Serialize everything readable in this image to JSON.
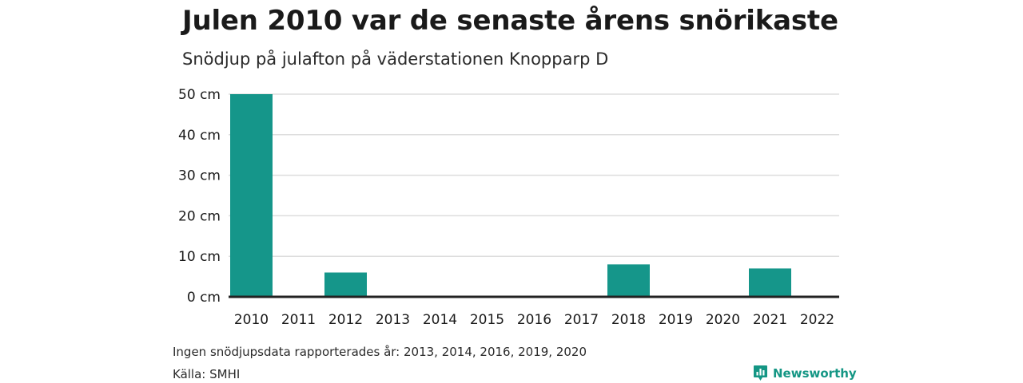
{
  "header": {
    "title": "Julen 2010 var de senaste årens snörikaste",
    "subtitle": "Snödjup på julafton på väderstationen Knopparp D"
  },
  "footer": {
    "note": "Ingen snödjupsdata rapporterades år: 2013, 2014, 2016, 2019, 2020",
    "source": "Källa: SMHI",
    "brand": "Newsworthy",
    "brand_icon": "newsworthy-logo-icon"
  },
  "colors": {
    "bar": "#15968a",
    "grid": "#dddddd",
    "baseline": "#222222",
    "brand": "#149684"
  },
  "chart_data": {
    "type": "bar",
    "title": "Julen 2010 var de senaste årens snörikaste",
    "subtitle": "Snödjup på julafton på väderstationen Knopparp D",
    "categories": [
      "2010",
      "2011",
      "2012",
      "2013",
      "2014",
      "2015",
      "2016",
      "2017",
      "2018",
      "2019",
      "2020",
      "2021",
      "2022"
    ],
    "values": [
      50,
      0,
      6,
      null,
      null,
      0,
      null,
      0,
      8,
      null,
      null,
      7,
      0
    ],
    "ylim": [
      0,
      50
    ],
    "yticks": [
      "0 cm",
      "10 cm",
      "20 cm",
      "30 cm",
      "40 cm",
      "50 cm"
    ],
    "ytick_values": [
      0,
      10,
      20,
      30,
      40,
      50
    ],
    "grid": true
  }
}
